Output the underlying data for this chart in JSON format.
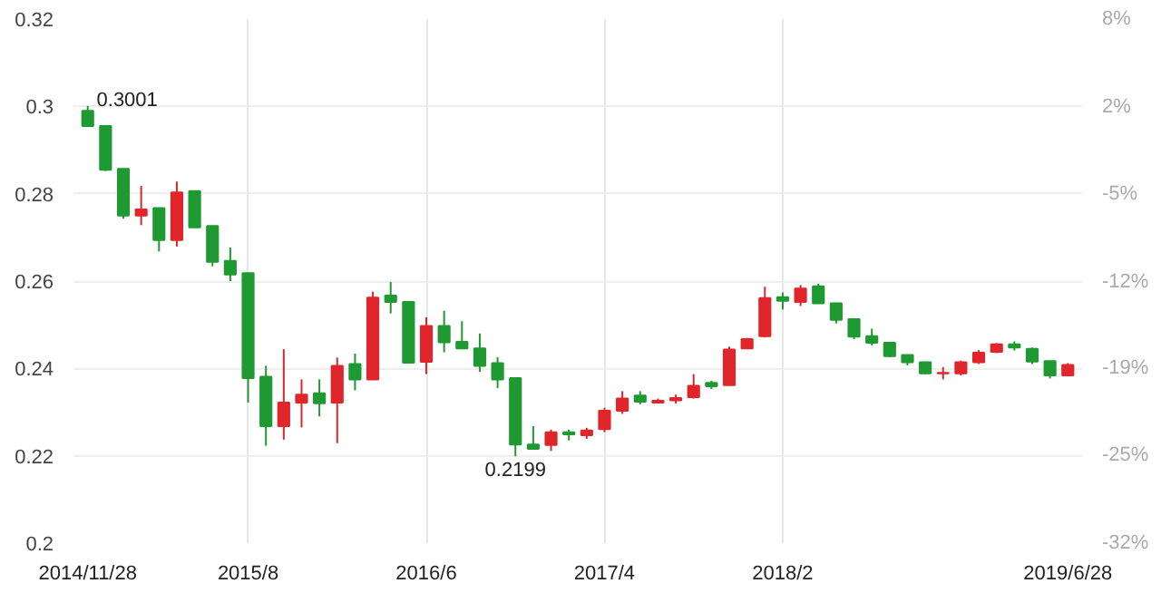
{
  "chart_data": {
    "type": "candlestick",
    "categories": [
      "2014/11/28",
      null,
      null,
      null,
      null,
      null,
      null,
      null,
      null,
      "2015/8",
      null,
      null,
      null,
      null,
      null,
      null,
      null,
      null,
      null,
      "2016/6",
      null,
      null,
      null,
      null,
      null,
      null,
      null,
      null,
      null,
      "2017/4",
      null,
      null,
      null,
      null,
      null,
      null,
      null,
      null,
      null,
      "2018/2",
      null,
      null,
      null,
      null,
      null,
      null,
      null,
      null,
      null,
      null,
      null,
      null,
      null,
      null,
      null,
      "2019/6/28"
    ],
    "ohlc": [
      [
        0.299,
        0.3001,
        0.2955,
        0.2955
      ],
      [
        0.2955,
        0.2955,
        0.2852,
        0.2855
      ],
      [
        0.2857,
        0.2857,
        0.2743,
        0.275
      ],
      [
        0.275,
        0.2818,
        0.2728,
        0.2764
      ],
      [
        0.2767,
        0.2767,
        0.2668,
        0.2694
      ],
      [
        0.2694,
        0.2828,
        0.2679,
        0.2803
      ],
      [
        0.2806,
        0.2806,
        0.2723,
        0.2723
      ],
      [
        0.2726,
        0.2726,
        0.2634,
        0.2644
      ],
      [
        0.2646,
        0.2677,
        0.26,
        0.2615
      ],
      [
        0.2618,
        0.2618,
        0.2322,
        0.2378
      ],
      [
        0.2381,
        0.2406,
        0.2223,
        0.2268
      ],
      [
        0.2268,
        0.2444,
        0.2237,
        0.2322
      ],
      [
        0.2322,
        0.2375,
        0.2265,
        0.234
      ],
      [
        0.2343,
        0.2375,
        0.229,
        0.232
      ],
      [
        0.2322,
        0.2425,
        0.2229,
        0.2406
      ],
      [
        0.241,
        0.2434,
        0.235,
        0.2375
      ],
      [
        0.2375,
        0.2576,
        0.2375,
        0.2562
      ],
      [
        0.2567,
        0.2598,
        0.2526,
        0.2552
      ],
      [
        0.2552,
        0.2552,
        0.2413,
        0.2413
      ],
      [
        0.2415,
        0.2517,
        0.2387,
        0.2497
      ],
      [
        0.2497,
        0.2532,
        0.2437,
        0.246
      ],
      [
        0.2461,
        0.2508,
        0.2446,
        0.2446
      ],
      [
        0.2446,
        0.248,
        0.2392,
        0.2406
      ],
      [
        0.2412,
        0.2426,
        0.2355,
        0.2375
      ],
      [
        0.2378,
        0.2378,
        0.2199,
        0.2226
      ],
      [
        0.2226,
        0.2268,
        0.2216,
        0.2216
      ],
      [
        0.2225,
        0.226,
        0.2211,
        0.2254
      ],
      [
        0.2254,
        0.226,
        0.2235,
        0.2249
      ],
      [
        0.2247,
        0.2264,
        0.2239,
        0.2258
      ],
      [
        0.2261,
        0.231,
        0.2254,
        0.2303
      ],
      [
        0.2303,
        0.2348,
        0.2296,
        0.2331
      ],
      [
        0.2338,
        0.2348,
        0.2318,
        0.2324
      ],
      [
        0.2322,
        0.2331,
        0.232,
        0.2326
      ],
      [
        0.2327,
        0.234,
        0.232,
        0.2332
      ],
      [
        0.2334,
        0.2387,
        0.2331,
        0.236
      ],
      [
        0.2367,
        0.2372,
        0.2353,
        0.2359
      ],
      [
        0.2362,
        0.245,
        0.2362,
        0.2443
      ],
      [
        0.2446,
        0.247,
        0.2446,
        0.2467
      ],
      [
        0.2474,
        0.2587,
        0.2471,
        0.2561
      ],
      [
        0.2563,
        0.2574,
        0.2535,
        0.2555
      ],
      [
        0.2552,
        0.2591,
        0.2543,
        0.2583
      ],
      [
        0.2588,
        0.2594,
        0.2549,
        0.2549
      ],
      [
        0.2549,
        0.2549,
        0.2503,
        0.2511
      ],
      [
        0.2513,
        0.2513,
        0.2467,
        0.2473
      ],
      [
        0.2474,
        0.2491,
        0.2453,
        0.2459
      ],
      [
        0.2459,
        0.2459,
        0.2426,
        0.2428
      ],
      [
        0.2431,
        0.2431,
        0.2407,
        0.2414
      ],
      [
        0.2414,
        0.2414,
        0.2387,
        0.2389
      ],
      [
        0.2389,
        0.2403,
        0.2375,
        0.239
      ],
      [
        0.2389,
        0.2418,
        0.2384,
        0.2414
      ],
      [
        0.2414,
        0.2442,
        0.241,
        0.2436
      ],
      [
        0.2438,
        0.2458,
        0.2435,
        0.2455
      ],
      [
        0.2455,
        0.2462,
        0.2441,
        0.2448
      ],
      [
        0.2445,
        0.2448,
        0.241,
        0.2416
      ],
      [
        0.2417,
        0.2417,
        0.2377,
        0.2384
      ],
      [
        0.2384,
        0.2412,
        0.2384,
        0.2408
      ]
    ],
    "colors": [
      "#1f9a33",
      "#1f9a33",
      "#1f9a33",
      "#e0262a",
      "#1f9a33",
      "#e0262a",
      "#1f9a33",
      "#1f9a33",
      "#1f9a33",
      "#1f9a33",
      "#1f9a33",
      "#e0262a",
      "#e0262a",
      "#1f9a33",
      "#e0262a",
      "#1f9a33",
      "#e0262a",
      "#1f9a33",
      "#1f9a33",
      "#e0262a",
      "#1f9a33",
      "#1f9a33",
      "#1f9a33",
      "#1f9a33",
      "#1f9a33",
      "#1f9a33",
      "#e0262a",
      "#1f9a33",
      "#e0262a",
      "#e0262a",
      "#e0262a",
      "#1f9a33",
      "#e0262a",
      "#e0262a",
      "#e0262a",
      "#1f9a33",
      "#e0262a",
      "#e0262a",
      "#e0262a",
      "#1f9a33",
      "#e0262a",
      "#1f9a33",
      "#1f9a33",
      "#1f9a33",
      "#1f9a33",
      "#1f9a33",
      "#1f9a33",
      "#1f9a33",
      "#e0262a",
      "#e0262a",
      "#e0262a",
      "#e0262a",
      "#1f9a33",
      "#1f9a33",
      "#1f9a33",
      "#e0262a"
    ],
    "ylim": [
      0.2,
      0.32
    ],
    "yticks": [
      0.2,
      0.22,
      0.24,
      0.26,
      0.28,
      0.3,
      0.32
    ],
    "y2lim": [
      -32.2,
      8.5
    ],
    "y2ticks": [
      {
        "value": -32.2,
        "label": "-32%"
      },
      {
        "value": -25.4,
        "label": "-25%"
      },
      {
        "value": -18.6,
        "label": "-19%"
      },
      {
        "value": -11.9,
        "label": "-12%"
      },
      {
        "value": -5.1,
        "label": "-5%"
      },
      {
        "value": 1.7,
        "label": "2%"
      },
      {
        "value": 8.5,
        "label": "8%"
      }
    ],
    "grid": true,
    "annotations": [
      {
        "text": "0.3001",
        "x": "2014/11/28",
        "y": 0.3001
      },
      {
        "text": "0.2199",
        "y": 0.2199
      }
    ]
  }
}
